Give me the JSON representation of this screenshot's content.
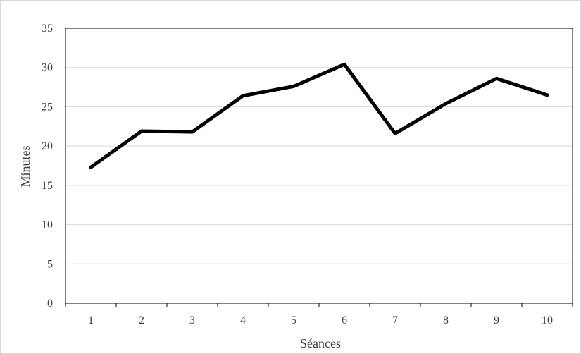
{
  "chart_data": {
    "type": "line",
    "title": "",
    "xlabel": "Séances",
    "ylabel": "Minutes",
    "categories": [
      "1",
      "2",
      "3",
      "4",
      "5",
      "6",
      "7",
      "8",
      "9",
      "10"
    ],
    "y_ticks": [
      "0",
      "5",
      "10",
      "15",
      "20",
      "25",
      "30",
      "35"
    ],
    "ylim": [
      0,
      35
    ],
    "grid": true,
    "legend": "none",
    "series": [
      {
        "values": [
          17.3,
          21.9,
          21.8,
          26.4,
          27.6,
          30.4,
          21.6,
          25.4,
          28.6,
          26.5
        ],
        "color": "#000000"
      }
    ],
    "grid_color": "#d9d9d9",
    "axis_color": "#000000"
  }
}
